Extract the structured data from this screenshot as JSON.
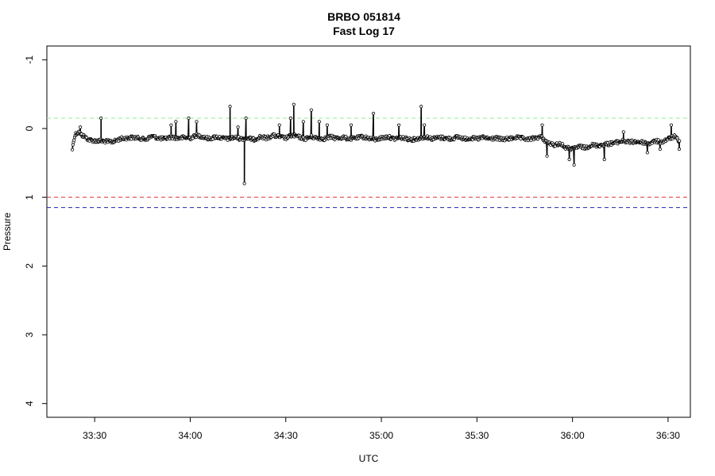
{
  "chart_data": {
    "type": "line",
    "title": "BRBO 051814",
    "subtitle": "Fast Log 17",
    "xlabel": "UTC",
    "ylabel": "Pressure",
    "x_ticks": [
      "33:30",
      "34:00",
      "34:30",
      "35:00",
      "35:30",
      "36:00",
      "36:30"
    ],
    "x_tick_seconds": [
      0,
      30,
      60,
      90,
      120,
      150,
      180
    ],
    "xlim_seconds": [
      -15,
      187
    ],
    "y_ticks": [
      -1,
      0,
      1,
      2,
      3,
      4
    ],
    "ylim": [
      4.2,
      -1.2
    ],
    "y_reversed": true,
    "grid": false,
    "markers": "open-circle",
    "reference_lines": [
      {
        "y": -0.15,
        "color": "#90ee90",
        "style": "dashed"
      },
      {
        "y": 1.0,
        "color": "#e03030",
        "style": "dashed"
      },
      {
        "y": 1.15,
        "color": "#2020b0",
        "style": "dashed"
      }
    ],
    "series": [
      {
        "x_start": "33:23.5",
        "x_end": "36:29.5",
        "typical_y": -0.15,
        "baseline": [
          [
            -7.0,
            0.3
          ],
          [
            -6.5,
            0.15
          ],
          [
            -6.0,
            0.08
          ],
          [
            -5.0,
            0.05
          ],
          [
            -4.0,
            0.1
          ],
          [
            -3.0,
            0.12
          ],
          [
            -2.0,
            0.16
          ],
          [
            0.0,
            0.18
          ],
          [
            2.0,
            0.18
          ],
          [
            4.0,
            0.19
          ],
          [
            6.0,
            0.19
          ],
          [
            8.0,
            0.15
          ],
          [
            10.0,
            0.14
          ],
          [
            12.0,
            0.13
          ],
          [
            14.0,
            0.14
          ],
          [
            16.0,
            0.16
          ],
          [
            18.0,
            0.11
          ],
          [
            20.0,
            0.14
          ],
          [
            22.0,
            0.15
          ],
          [
            24.0,
            0.12
          ],
          [
            26.0,
            0.14
          ],
          [
            28.0,
            0.13
          ],
          [
            30.0,
            0.14
          ],
          [
            32.0,
            0.1
          ],
          [
            34.0,
            0.12
          ],
          [
            36.0,
            0.15
          ],
          [
            38.0,
            0.12
          ],
          [
            40.0,
            0.14
          ],
          [
            42.0,
            0.15
          ],
          [
            44.0,
            0.13
          ],
          [
            46.0,
            0.15
          ],
          [
            48.0,
            0.14
          ],
          [
            50.0,
            0.16
          ],
          [
            52.0,
            0.12
          ],
          [
            54.0,
            0.14
          ],
          [
            56.0,
            0.1
          ],
          [
            58.0,
            0.12
          ],
          [
            60.0,
            0.14
          ],
          [
            62.0,
            0.1
          ],
          [
            64.0,
            0.12
          ],
          [
            66.0,
            0.15
          ],
          [
            68.0,
            0.12
          ],
          [
            70.0,
            0.14
          ],
          [
            72.0,
            0.15
          ],
          [
            74.0,
            0.12
          ],
          [
            76.0,
            0.14
          ],
          [
            78.0,
            0.13
          ],
          [
            80.0,
            0.15
          ],
          [
            82.0,
            0.14
          ],
          [
            84.0,
            0.12
          ],
          [
            86.0,
            0.14
          ],
          [
            88.0,
            0.16
          ],
          [
            90.0,
            0.14
          ],
          [
            92.0,
            0.12
          ],
          [
            94.0,
            0.15
          ],
          [
            96.0,
            0.13
          ],
          [
            98.0,
            0.15
          ],
          [
            100.0,
            0.16
          ],
          [
            102.0,
            0.14
          ],
          [
            104.0,
            0.12
          ],
          [
            106.0,
            0.15
          ],
          [
            108.0,
            0.13
          ],
          [
            110.0,
            0.14
          ],
          [
            112.0,
            0.15
          ],
          [
            114.0,
            0.12
          ],
          [
            116.0,
            0.15
          ],
          [
            118.0,
            0.14
          ],
          [
            120.0,
            0.15
          ],
          [
            122.0,
            0.13
          ],
          [
            124.0,
            0.15
          ],
          [
            126.0,
            0.14
          ],
          [
            128.0,
            0.16
          ],
          [
            130.0,
            0.15
          ],
          [
            132.0,
            0.13
          ],
          [
            134.0,
            0.14
          ],
          [
            136.0,
            0.16
          ],
          [
            138.0,
            0.14
          ],
          [
            140.0,
            0.12
          ],
          [
            142.0,
            0.2
          ],
          [
            144.0,
            0.24
          ],
          [
            146.0,
            0.22
          ],
          [
            148.0,
            0.28
          ],
          [
            150.0,
            0.3
          ],
          [
            152.0,
            0.26
          ],
          [
            154.0,
            0.28
          ],
          [
            156.0,
            0.24
          ],
          [
            158.0,
            0.25
          ],
          [
            160.0,
            0.23
          ],
          [
            162.0,
            0.22
          ],
          [
            164.0,
            0.2
          ],
          [
            166.0,
            0.18
          ],
          [
            168.0,
            0.2
          ],
          [
            170.0,
            0.19
          ],
          [
            172.0,
            0.2
          ],
          [
            174.0,
            0.22
          ],
          [
            176.0,
            0.18
          ],
          [
            178.0,
            0.2
          ],
          [
            180.0,
            0.15
          ],
          [
            182.0,
            0.12
          ],
          [
            183.5,
            0.18
          ]
        ],
        "spikes": [
          [
            -4.5,
            -0.02
          ],
          [
            2.0,
            -0.15
          ],
          [
            24.0,
            -0.05
          ],
          [
            25.5,
            -0.1
          ],
          [
            29.5,
            -0.15
          ],
          [
            32.0,
            -0.1
          ],
          [
            42.5,
            -0.32
          ],
          [
            45.0,
            -0.02
          ],
          [
            47.0,
            0.8
          ],
          [
            47.5,
            -0.15
          ],
          [
            58.0,
            -0.05
          ],
          [
            61.5,
            -0.15
          ],
          [
            62.5,
            -0.35
          ],
          [
            65.5,
            -0.1
          ],
          [
            68.0,
            -0.27
          ],
          [
            70.5,
            -0.1
          ],
          [
            73.0,
            -0.05
          ],
          [
            80.5,
            -0.05
          ],
          [
            87.5,
            -0.22
          ],
          [
            95.5,
            -0.05
          ],
          [
            102.5,
            -0.32
          ],
          [
            103.5,
            -0.05
          ],
          [
            140.5,
            -0.05
          ],
          [
            142.0,
            0.4
          ],
          [
            149.0,
            0.45
          ],
          [
            150.5,
            0.53
          ],
          [
            160.0,
            0.45
          ],
          [
            166.0,
            0.05
          ],
          [
            173.5,
            0.35
          ],
          [
            177.5,
            0.3
          ],
          [
            181.0,
            -0.05
          ],
          [
            183.5,
            0.3
          ]
        ]
      }
    ]
  }
}
